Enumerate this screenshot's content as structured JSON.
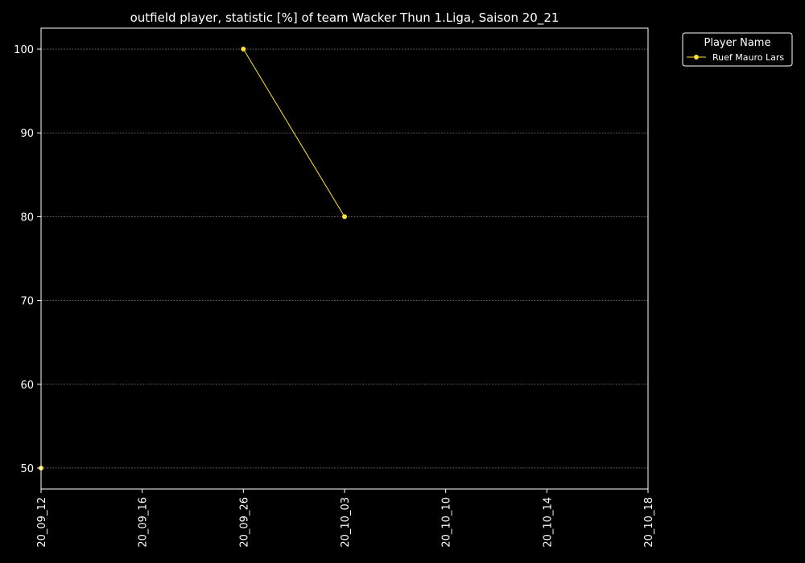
{
  "chart_data": {
    "type": "line",
    "title": "outfield player, statistic [%] of team Wacker Thun 1.Liga, Saison 20_21",
    "xlabel": "",
    "ylabel": "",
    "categories": [
      "20_09_12",
      "20_09_16",
      "20_09_26",
      "20_10_03",
      "20_10_10",
      "20_10_14",
      "20_10_18"
    ],
    "ylim": [
      47.5,
      102.5
    ],
    "yticks": [
      50,
      60,
      70,
      80,
      90,
      100
    ],
    "grid": "y-dashed",
    "legend": {
      "title": "Player Name",
      "position": "outside-top-right"
    },
    "series": [
      {
        "name": "Ruef Mauro Lars",
        "color": "#ffe135",
        "values": [
          50,
          null,
          100,
          80,
          null,
          null,
          null
        ]
      }
    ]
  },
  "colors": {
    "background": "#000000",
    "axes": "#ffffff",
    "grid": "#888888"
  }
}
